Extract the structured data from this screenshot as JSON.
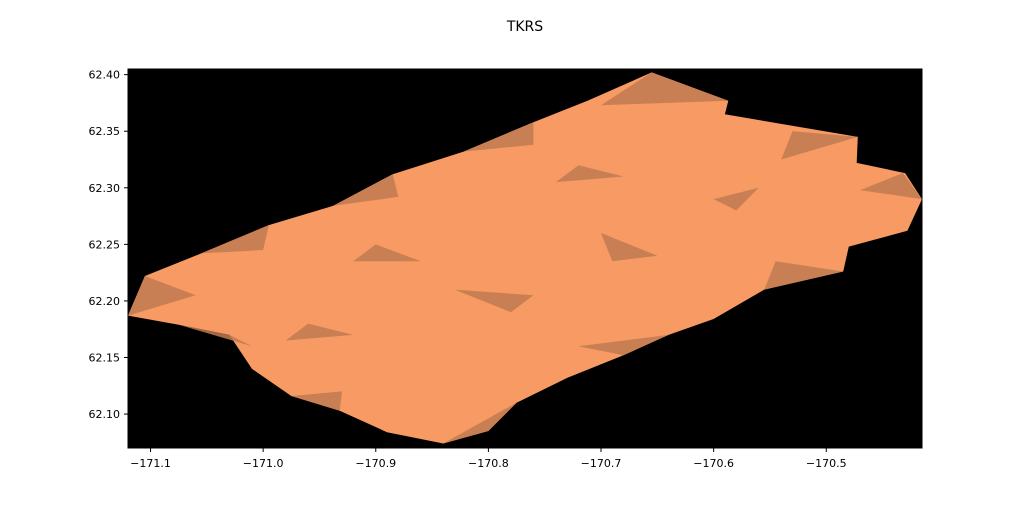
{
  "chart_data": {
    "type": "map",
    "title": "TKRS",
    "xlim": [
      -171.12,
      -170.415
    ],
    "ylim": [
      62.07,
      62.405
    ],
    "xticks": [
      {
        "value": -171.1,
        "label": "−171.1"
      },
      {
        "value": -171.0,
        "label": "−171.0"
      },
      {
        "value": -170.9,
        "label": "−170.9"
      },
      {
        "value": -170.8,
        "label": "−170.8"
      },
      {
        "value": -170.7,
        "label": "−170.7"
      },
      {
        "value": -170.6,
        "label": "−170.6"
      },
      {
        "value": -170.5,
        "label": "−170.5"
      }
    ],
    "yticks": [
      {
        "value": 62.1,
        "label": "62.10"
      },
      {
        "value": 62.15,
        "label": "62.15"
      },
      {
        "value": 62.2,
        "label": "62.20"
      },
      {
        "value": 62.25,
        "label": "62.25"
      },
      {
        "value": 62.3,
        "label": "62.30"
      },
      {
        "value": 62.35,
        "label": "62.35"
      },
      {
        "value": 62.4,
        "label": "62.40"
      }
    ],
    "background_color": "#000000",
    "fill_color": "#f79a63",
    "shade_color": "#c07a50",
    "footprint_outline": [
      [
        -170.655,
        62.402
      ],
      [
        -170.587,
        62.377
      ],
      [
        -170.59,
        62.365
      ],
      [
        -170.472,
        62.345
      ],
      [
        -170.473,
        62.322
      ],
      [
        -170.43,
        62.313
      ],
      [
        -170.415,
        62.29
      ],
      [
        -170.428,
        62.262
      ],
      [
        -170.48,
        62.248
      ],
      [
        -170.485,
        62.226
      ],
      [
        -170.555,
        62.21
      ],
      [
        -170.6,
        62.184
      ],
      [
        -170.64,
        62.17
      ],
      [
        -170.68,
        62.152
      ],
      [
        -170.73,
        62.132
      ],
      [
        -170.775,
        62.11
      ],
      [
        -170.8,
        62.085
      ],
      [
        -170.84,
        62.074
      ],
      [
        -170.89,
        62.084
      ],
      [
        -170.932,
        62.103
      ],
      [
        -170.975,
        62.116
      ],
      [
        -171.01,
        62.14
      ],
      [
        -171.03,
        62.17
      ],
      [
        -171.075,
        62.179
      ],
      [
        -171.12,
        62.187
      ],
      [
        -171.105,
        62.222
      ],
      [
        -171.055,
        62.242
      ],
      [
        -170.995,
        62.267
      ],
      [
        -170.938,
        62.284
      ],
      [
        -170.885,
        62.312
      ],
      [
        -170.822,
        62.332
      ],
      [
        -170.76,
        62.358
      ],
      [
        -170.712,
        62.377
      ],
      [
        -170.655,
        62.402
      ]
    ],
    "shaded_patches": [
      [
        [
          -170.655,
          62.402
        ],
        [
          -170.587,
          62.377
        ],
        [
          -170.7,
          62.373
        ]
      ],
      [
        [
          -170.76,
          62.358
        ],
        [
          -170.822,
          62.332
        ],
        [
          -170.76,
          62.338
        ]
      ],
      [
        [
          -170.885,
          62.312
        ],
        [
          -170.938,
          62.284
        ],
        [
          -170.88,
          62.292
        ]
      ],
      [
        [
          -171.055,
          62.242
        ],
        [
          -170.995,
          62.267
        ],
        [
          -171.0,
          62.245
        ]
      ],
      [
        [
          -171.105,
          62.222
        ],
        [
          -171.12,
          62.187
        ],
        [
          -171.06,
          62.205
        ]
      ],
      [
        [
          -170.432,
          62.313
        ],
        [
          -170.415,
          62.29
        ],
        [
          -170.47,
          62.298
        ]
      ],
      [
        [
          -170.472,
          62.345
        ],
        [
          -170.53,
          62.35
        ],
        [
          -170.54,
          62.325
        ]
      ],
      [
        [
          -170.485,
          62.226
        ],
        [
          -170.555,
          62.21
        ],
        [
          -170.545,
          62.235
        ]
      ],
      [
        [
          -170.64,
          62.17
        ],
        [
          -170.68,
          62.152
        ],
        [
          -170.72,
          62.16
        ]
      ],
      [
        [
          -170.775,
          62.11
        ],
        [
          -170.8,
          62.085
        ],
        [
          -170.84,
          62.074
        ]
      ],
      [
        [
          -170.932,
          62.103
        ],
        [
          -170.975,
          62.116
        ],
        [
          -170.93,
          62.12
        ]
      ],
      [
        [
          -171.03,
          62.17
        ],
        [
          -171.075,
          62.179
        ],
        [
          -171.01,
          62.16
        ]
      ],
      [
        [
          -170.83,
          62.21
        ],
        [
          -170.78,
          62.19
        ],
        [
          -170.76,
          62.205
        ]
      ],
      [
        [
          -170.7,
          62.26
        ],
        [
          -170.65,
          62.24
        ],
        [
          -170.69,
          62.235
        ]
      ],
      [
        [
          -170.6,
          62.29
        ],
        [
          -170.56,
          62.3
        ],
        [
          -170.58,
          62.28
        ]
      ],
      [
        [
          -170.9,
          62.25
        ],
        [
          -170.86,
          62.235
        ],
        [
          -170.92,
          62.235
        ]
      ],
      [
        [
          -170.96,
          62.18
        ],
        [
          -170.92,
          62.17
        ],
        [
          -170.98,
          62.165
        ]
      ],
      [
        [
          -170.72,
          62.32
        ],
        [
          -170.68,
          62.31
        ],
        [
          -170.74,
          62.305
        ]
      ]
    ]
  }
}
